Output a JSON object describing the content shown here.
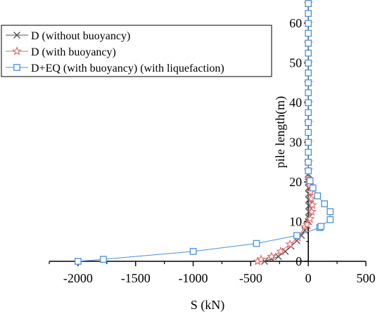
{
  "chart_data": {
    "type": "line",
    "xlabel": "S (kN)",
    "ylabel": "pile length(m)",
    "xlim": [
      -2250,
      500
    ],
    "ylim": [
      0,
      65
    ],
    "xticks": [
      -2000,
      -1500,
      -1000,
      -500,
      0,
      500
    ],
    "yticks": [
      0,
      10,
      20,
      30,
      40,
      50,
      60
    ],
    "grid": false,
    "legend_position": "top-left",
    "series": [
      {
        "name": "D (without buoyancy)",
        "color": "#555555",
        "marker": "x",
        "points": [
          [
            -380,
            0
          ],
          [
            -320,
            0.6
          ],
          [
            -260,
            1.2
          ],
          [
            -200,
            2.5
          ],
          [
            -150,
            3.8
          ],
          [
            -100,
            5.2
          ],
          [
            -60,
            6.5
          ],
          [
            -30,
            7.8
          ],
          [
            -10,
            9
          ],
          [
            0,
            10
          ],
          [
            2,
            11
          ],
          [
            4,
            12.5
          ],
          [
            4,
            14
          ],
          [
            3,
            15.5
          ],
          [
            2,
            17
          ],
          [
            1,
            18.5
          ],
          [
            0,
            20
          ],
          [
            0,
            22
          ],
          [
            0,
            25
          ],
          [
            0,
            30
          ],
          [
            0,
            35
          ],
          [
            0,
            40
          ],
          [
            0,
            45
          ],
          [
            0,
            50
          ],
          [
            0,
            55
          ],
          [
            0,
            60
          ],
          [
            0,
            65
          ]
        ]
      },
      {
        "name": "D (with buoyancy)",
        "color": "#e06666",
        "marker": "star",
        "points": [
          [
            -440,
            0
          ],
          [
            -410,
            0.5
          ],
          [
            -320,
            1.2
          ],
          [
            -240,
            2.5
          ],
          [
            -160,
            4.3
          ],
          [
            -90,
            6
          ],
          [
            -30,
            8.7
          ],
          [
            -10,
            9.3
          ],
          [
            15,
            10.7
          ],
          [
            30,
            12.5
          ],
          [
            35,
            14.2
          ],
          [
            25,
            15.8
          ],
          [
            20,
            17.5
          ],
          [
            12,
            19.2
          ],
          [
            5,
            20.8
          ],
          [
            0,
            23
          ],
          [
            0,
            25
          ],
          [
            0,
            30
          ],
          [
            0,
            35
          ],
          [
            0,
            40
          ],
          [
            0,
            45
          ],
          [
            0,
            50
          ],
          [
            0,
            55
          ],
          [
            0,
            60
          ],
          [
            0,
            65
          ]
        ]
      },
      {
        "name": "D+EQ (with buoyancy) (with liquefaction)",
        "color": "#4a90d9",
        "marker": "square",
        "points": [
          [
            -2000,
            0
          ],
          [
            -1780,
            0.5
          ],
          [
            -1000,
            2.5
          ],
          [
            -450,
            4.5
          ],
          [
            -100,
            6.5
          ],
          [
            100,
            8.5
          ],
          [
            110,
            8.8
          ],
          [
            190,
            10.5
          ],
          [
            190,
            12.5
          ],
          [
            140,
            14.5
          ],
          [
            80,
            16.5
          ],
          [
            40,
            18.5
          ],
          [
            15,
            20.3
          ],
          [
            0,
            22.8
          ],
          [
            0,
            25
          ],
          [
            0,
            27.5
          ],
          [
            0,
            30
          ],
          [
            0,
            32.5
          ],
          [
            0,
            35
          ],
          [
            0,
            37.5
          ],
          [
            0,
            40
          ],
          [
            0,
            42.5
          ],
          [
            0,
            45
          ],
          [
            0,
            47.5
          ],
          [
            0,
            50
          ],
          [
            0,
            52.5
          ],
          [
            0,
            55
          ],
          [
            0,
            57.5
          ],
          [
            0,
            60
          ],
          [
            0,
            62.5
          ],
          [
            0,
            65
          ]
        ]
      }
    ]
  }
}
